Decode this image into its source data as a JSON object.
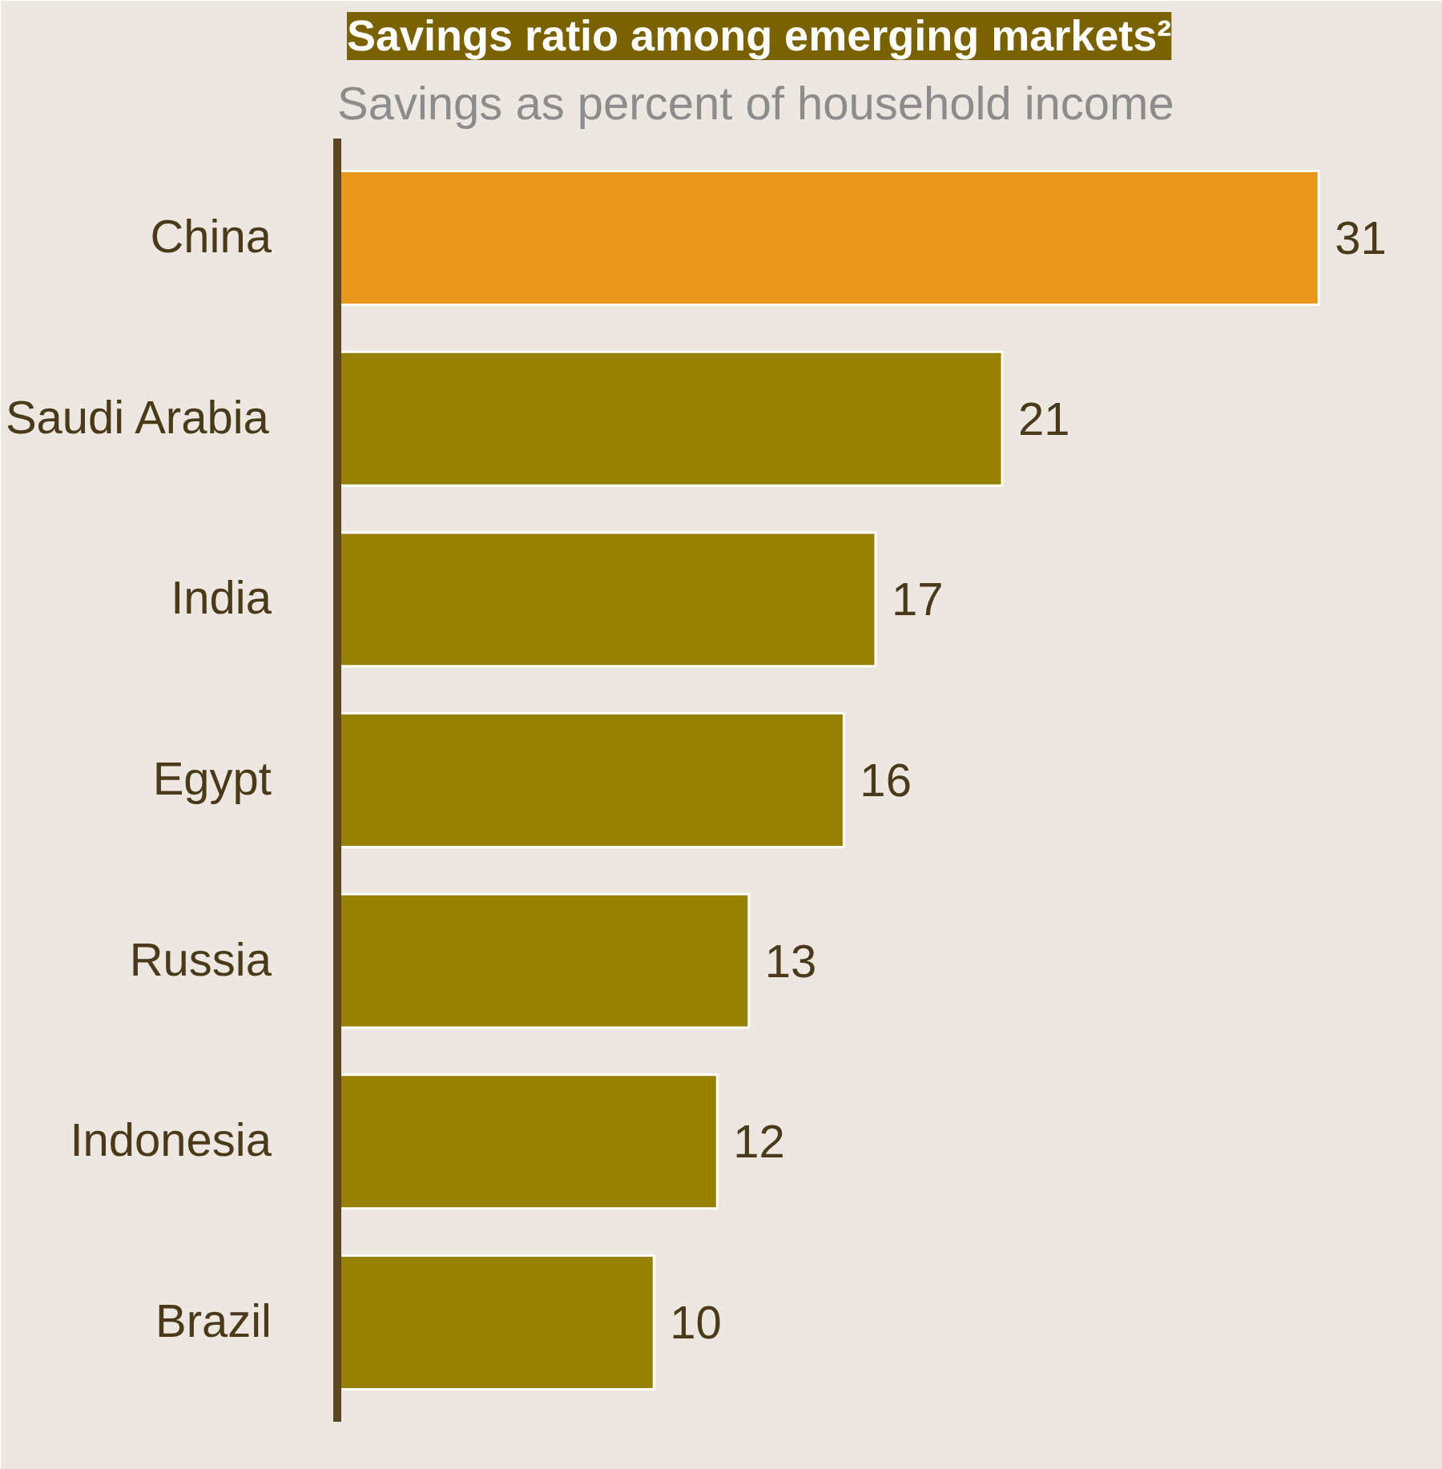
{
  "chart_data": {
    "type": "bar",
    "orientation": "horizontal",
    "title": "Savings ratio among emerging markets²",
    "subtitle": "Savings as percent of household income",
    "categories": [
      "China",
      "Saudi Arabia",
      "India",
      "Egypt",
      "Russia",
      "Indonesia",
      "Brazil"
    ],
    "values": [
      31,
      21,
      17,
      16,
      13,
      12,
      10
    ],
    "colors": [
      "#e8961c",
      "#968000",
      "#968000",
      "#968000",
      "#968000",
      "#968000",
      "#968000"
    ],
    "data_labels": true
  }
}
